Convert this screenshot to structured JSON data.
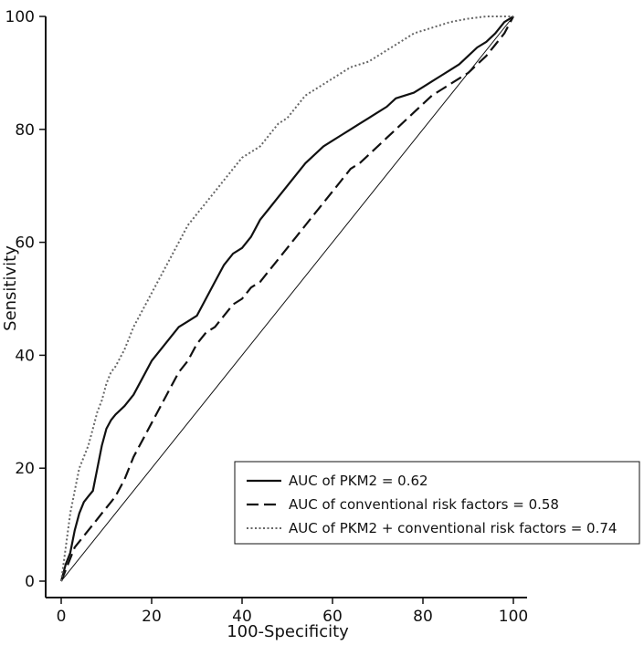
{
  "chart_data": {
    "type": "line",
    "xlabel": "100-Specificity",
    "ylabel": "Sensitivity",
    "xlim": [
      0,
      100
    ],
    "ylim": [
      0,
      100
    ],
    "x_ticks": [
      0,
      20,
      40,
      60,
      80,
      100
    ],
    "y_ticks": [
      0,
      20,
      40,
      60,
      80,
      100
    ],
    "grid": false,
    "legend_position": "bottom-right",
    "reference_line": {
      "x": [
        0,
        100
      ],
      "y": [
        0,
        100
      ],
      "style": "solid-thin"
    },
    "series": [
      {
        "name": "AUC of PKM2 = 0.62",
        "style": "solid",
        "color": "#111111",
        "x": [
          0,
          1,
          2,
          3,
          4,
          5,
          6,
          7,
          8,
          9,
          10,
          11,
          12,
          14,
          16,
          18,
          20,
          22,
          24,
          26,
          28,
          30,
          32,
          34,
          36,
          38,
          40,
          42,
          44,
          46,
          48,
          50,
          52,
          54,
          56,
          58,
          60,
          62,
          64,
          66,
          68,
          70,
          72,
          74,
          76,
          78,
          80,
          82,
          84,
          86,
          88,
          90,
          92,
          94,
          96,
          98,
          100
        ],
        "y": [
          0,
          3,
          5,
          9,
          12,
          14,
          15,
          16,
          20,
          24,
          27,
          28.5,
          29.5,
          31,
          33,
          36,
          39,
          41,
          43,
          45,
          46,
          47,
          50,
          53,
          56,
          58,
          59,
          61,
          64,
          66,
          68,
          70,
          72,
          74,
          75.5,
          77,
          78,
          79,
          80,
          81,
          82,
          83,
          84,
          85.5,
          86,
          86.5,
          87.5,
          88.5,
          89.5,
          90.5,
          91.5,
          93,
          94.5,
          95.5,
          97,
          99,
          100
        ]
      },
      {
        "name": "AUC of conventional risk factors = 0.58",
        "style": "dashed",
        "color": "#111111",
        "x": [
          0,
          1,
          2,
          3,
          4,
          5,
          6,
          7,
          8,
          9,
          10,
          11,
          12,
          14,
          16,
          18,
          20,
          22,
          24,
          26,
          28,
          30,
          32,
          34,
          36,
          38,
          40,
          42,
          44,
          46,
          48,
          50,
          52,
          54,
          56,
          58,
          60,
          62,
          64,
          66,
          68,
          70,
          72,
          74,
          76,
          78,
          80,
          82,
          84,
          86,
          88,
          90,
          92,
          94,
          96,
          98,
          100
        ],
        "y": [
          0,
          2,
          4,
          6,
          7,
          8,
          9,
          10,
          11,
          12,
          13,
          14,
          15,
          18,
          22,
          25,
          28,
          31,
          34,
          37,
          39,
          42,
          44,
          45,
          47,
          49,
          50,
          52,
          53,
          55,
          57,
          59,
          61,
          63,
          65,
          67,
          69,
          71,
          73,
          74,
          75.5,
          77,
          78.5,
          80,
          81.5,
          83,
          84.5,
          86,
          87,
          88,
          89,
          90,
          91.5,
          93,
          95,
          97,
          100
        ]
      },
      {
        "name": "AUC of PKM2 + conventional risk factors = 0.74",
        "style": "dotted",
        "color": "#666666",
        "x": [
          0,
          1,
          2,
          3,
          4,
          5,
          6,
          7,
          8,
          9,
          10,
          11,
          12,
          14,
          16,
          18,
          20,
          22,
          24,
          26,
          28,
          30,
          32,
          34,
          36,
          38,
          40,
          42,
          44,
          46,
          48,
          50,
          52,
          54,
          56,
          58,
          60,
          62,
          64,
          66,
          68,
          70,
          72,
          74,
          76,
          78,
          80,
          82,
          84,
          86,
          88,
          90,
          92,
          94,
          96,
          98,
          100
        ],
        "y": [
          0,
          6,
          12,
          16,
          20,
          22,
          24,
          27,
          30,
          32,
          35,
          37,
          38,
          41,
          45,
          48,
          51,
          54,
          57,
          60,
          63,
          65,
          67,
          69,
          71,
          73,
          75,
          76,
          77,
          79,
          81,
          82,
          84,
          86,
          87,
          88,
          89,
          90,
          91,
          91.5,
          92,
          93,
          94,
          95,
          96,
          97,
          97.5,
          98,
          98.5,
          99,
          99.3,
          99.6,
          99.8,
          100,
          100,
          100,
          100
        ]
      }
    ]
  }
}
